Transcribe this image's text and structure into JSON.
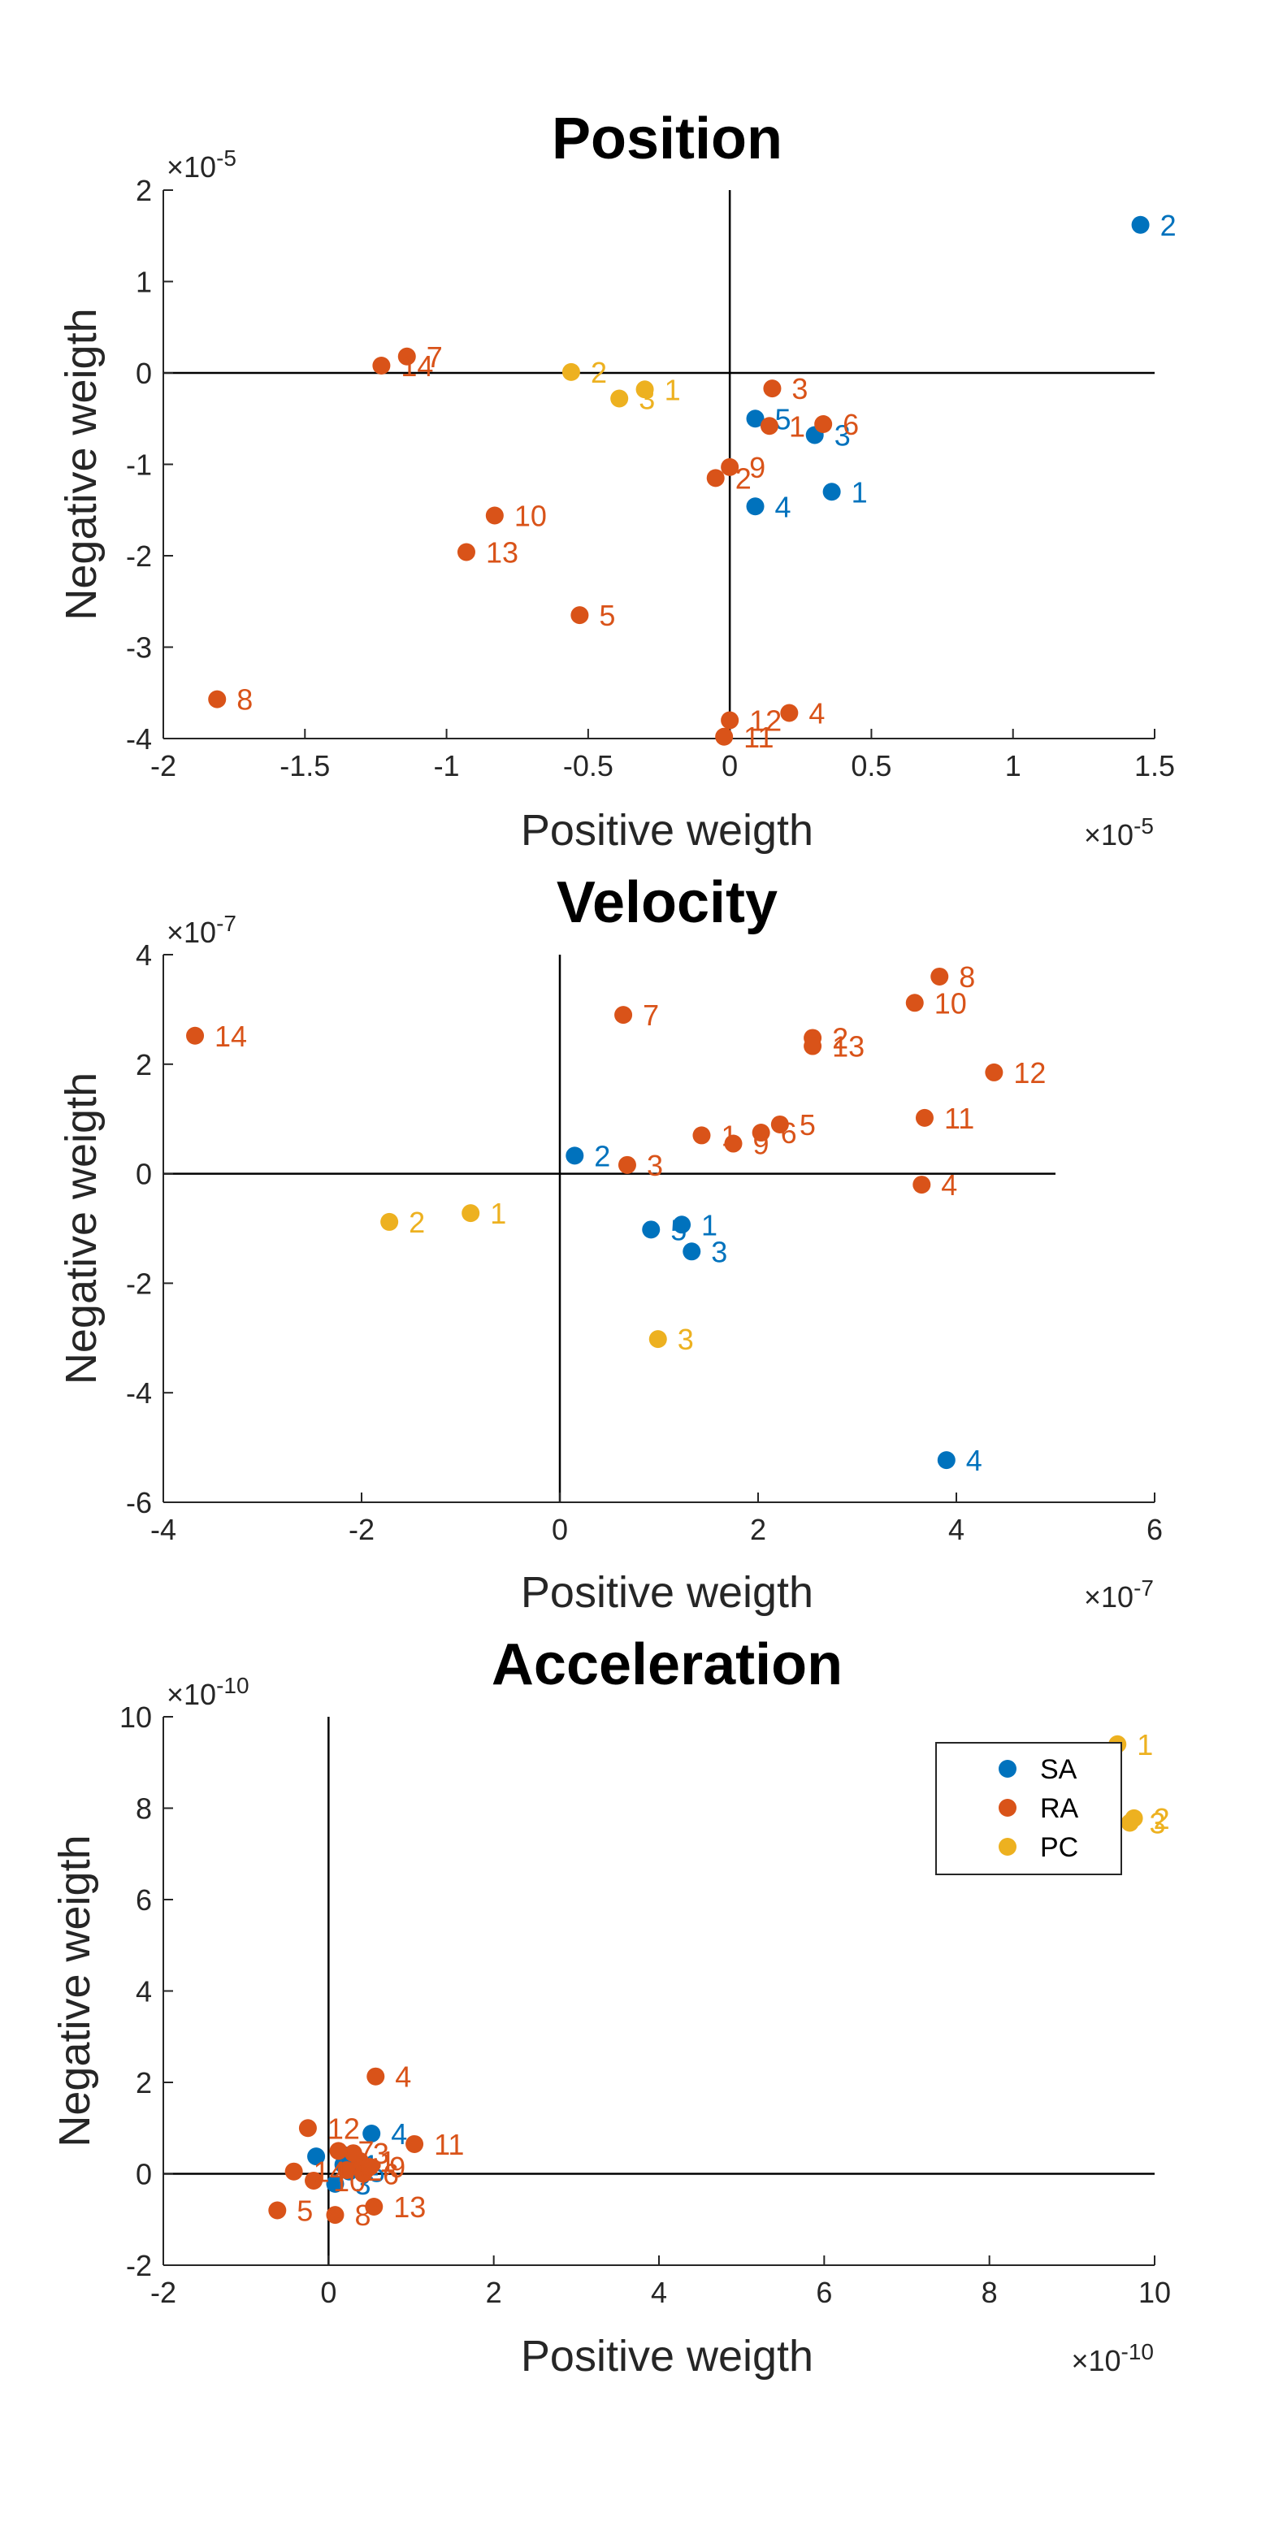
{
  "colors": {
    "SA": "#0072BD",
    "RA": "#D95319",
    "PC": "#EDB120"
  },
  "legend": {
    "placement": "top-right",
    "entries": [
      "SA",
      "RA",
      "PC"
    ]
  },
  "chart_data": [
    {
      "type": "scatter",
      "title": "Position",
      "xlabel": "Positive weigth",
      "ylabel": "Negative weigth",
      "x_exponent_label": "×10-5",
      "y_exponent_label": "×10-5",
      "scale": 1e-05,
      "xlim": [
        -2,
        1.5
      ],
      "ylim": [
        -4,
        2
      ],
      "xticks": [
        -2,
        -1.5,
        -1,
        -0.5,
        0,
        0.5,
        1,
        1.5
      ],
      "xtick_labels": [
        "-2",
        "-1.5",
        "-1",
        "-0.5",
        "0",
        "0.5",
        "1",
        "1.5"
      ],
      "yticks": [
        -4,
        -3,
        -2,
        -1,
        0,
        1,
        2
      ],
      "ytick_labels": [
        "-4",
        "-3",
        "-2",
        "-1",
        "0",
        "1",
        "2"
      ],
      "series": [
        {
          "name": "SA",
          "points": [
            {
              "label": "1",
              "x": 0.36,
              "y": -1.3
            },
            {
              "label": "2",
              "x": 1.45,
              "y": 1.62
            },
            {
              "label": "3",
              "x": 0.3,
              "y": -0.68
            },
            {
              "label": "4",
              "x": 0.09,
              "y": -1.46
            },
            {
              "label": "5",
              "x": 0.09,
              "y": -0.5
            }
          ]
        },
        {
          "name": "RA",
          "points": [
            {
              "label": "1",
              "x": 0.14,
              "y": -0.58
            },
            {
              "label": "2",
              "x": -0.05,
              "y": -1.15
            },
            {
              "label": "3",
              "x": 0.15,
              "y": -0.17
            },
            {
              "label": "4",
              "x": 0.21,
              "y": -3.72
            },
            {
              "label": "5",
              "x": -0.53,
              "y": -2.65
            },
            {
              "label": "6",
              "x": 0.33,
              "y": -0.56
            },
            {
              "label": "7",
              "x": -1.14,
              "y": 0.18
            },
            {
              "label": "8",
              "x": -1.81,
              "y": -3.57
            },
            {
              "label": "9",
              "x": 0.0,
              "y": -1.03
            },
            {
              "label": "10",
              "x": -0.83,
              "y": -1.56
            },
            {
              "label": "11",
              "x": -0.02,
              "y": -3.98
            },
            {
              "label": "12",
              "x": 0.0,
              "y": -3.8
            },
            {
              "label": "13",
              "x": -0.93,
              "y": -1.96
            },
            {
              "label": "14",
              "x": -1.23,
              "y": 0.08
            }
          ]
        },
        {
          "name": "PC",
          "points": [
            {
              "label": "1",
              "x": -0.3,
              "y": -0.18
            },
            {
              "label": "2",
              "x": -0.56,
              "y": 0.01
            },
            {
              "label": "3",
              "x": -0.39,
              "y": -0.28
            }
          ]
        }
      ]
    },
    {
      "type": "scatter",
      "title": "Velocity",
      "xlabel": "Positive weigth",
      "ylabel": "Negative weigth",
      "x_exponent_label": "×10-7",
      "y_exponent_label": "×10-7",
      "scale": 1e-07,
      "xlim": [
        -4,
        6
      ],
      "ylim": [
        -6,
        4
      ],
      "xticks": [
        -4,
        -2,
        0,
        2,
        4,
        6
      ],
      "xtick_labels": [
        "-4",
        "-2",
        "0",
        "2",
        "4",
        "6"
      ],
      "yticks": [
        -6,
        -4,
        -2,
        0,
        2,
        4
      ],
      "ytick_labels": [
        "-6",
        "-4",
        "-2",
        "0",
        "2",
        "4"
      ],
      "axis_line_x_end": 5,
      "series": [
        {
          "name": "SA",
          "points": [
            {
              "label": "1",
              "x": 1.23,
              "y": -0.93
            },
            {
              "label": "2",
              "x": 0.15,
              "y": 0.33
            },
            {
              "label": "3",
              "x": 1.33,
              "y": -1.42
            },
            {
              "label": "4",
              "x": 3.9,
              "y": -5.23
            },
            {
              "label": "5",
              "x": 0.92,
              "y": -1.02
            }
          ]
        },
        {
          "name": "RA",
          "points": [
            {
              "label": "1",
              "x": 1.43,
              "y": 0.7
            },
            {
              "label": "2",
              "x": 2.55,
              "y": 2.48
            },
            {
              "label": "3",
              "x": 0.68,
              "y": 0.16
            },
            {
              "label": "4",
              "x": 3.65,
              "y": -0.2
            },
            {
              "label": "5",
              "x": 2.22,
              "y": 0.9
            },
            {
              "label": "6",
              "x": 2.03,
              "y": 0.75
            },
            {
              "label": "7",
              "x": 0.64,
              "y": 2.9
            },
            {
              "label": "8",
              "x": 3.83,
              "y": 3.6
            },
            {
              "label": "9",
              "x": 1.75,
              "y": 0.55
            },
            {
              "label": "10",
              "x": 3.58,
              "y": 3.12
            },
            {
              "label": "11",
              "x": 3.68,
              "y": 1.02
            },
            {
              "label": "12",
              "x": 4.38,
              "y": 1.85
            },
            {
              "label": "13",
              "x": 2.55,
              "y": 2.33
            },
            {
              "label": "14",
              "x": -3.68,
              "y": 2.52
            }
          ]
        },
        {
          "name": "PC",
          "points": [
            {
              "label": "1",
              "x": -0.9,
              "y": -0.72
            },
            {
              "label": "2",
              "x": -1.72,
              "y": -0.88
            },
            {
              "label": "3",
              "x": 0.99,
              "y": -3.02
            }
          ]
        }
      ]
    },
    {
      "type": "scatter",
      "title": "Acceleration",
      "xlabel": "Positive weigth",
      "ylabel": "Negative weigth",
      "x_exponent_label": "×10-10",
      "y_exponent_label": "×10-10",
      "scale": 1e-10,
      "xlim": [
        -2,
        10
      ],
      "ylim": [
        -2,
        10
      ],
      "xticks": [
        -2,
        0,
        2,
        4,
        6,
        8,
        10
      ],
      "xtick_labels": [
        "-2",
        "0",
        "2",
        "4",
        "6",
        "8",
        "10"
      ],
      "yticks": [
        -2,
        0,
        2,
        4,
        6,
        8,
        10
      ],
      "ytick_labels": [
        "-2",
        "0",
        "2",
        "4",
        "6",
        "8",
        "10"
      ],
      "legend": true,
      "series": [
        {
          "name": "SA",
          "points": [
            {
              "label": "1",
              "x": 0.18,
              "y": 0.2
            },
            {
              "label": "2",
              "x": -0.15,
              "y": 0.38
            },
            {
              "label": "3",
              "x": 0.08,
              "y": -0.22
            },
            {
              "label": "4",
              "x": 0.52,
              "y": 0.88
            },
            {
              "label": "5",
              "x": 0.25,
              "y": 0.05
            }
          ]
        },
        {
          "name": "RA",
          "points": [
            {
              "label": "1",
              "x": 0.38,
              "y": 0.28
            },
            {
              "label": "2",
              "x": 0.22,
              "y": 0.08
            },
            {
              "label": "3",
              "x": 0.3,
              "y": 0.45
            },
            {
              "label": "4",
              "x": 0.57,
              "y": 2.13
            },
            {
              "label": "5",
              "x": -0.62,
              "y": -0.8
            },
            {
              "label": "6",
              "x": 0.42,
              "y": 0.0
            },
            {
              "label": "7",
              "x": 0.12,
              "y": 0.5
            },
            {
              "label": "8",
              "x": 0.08,
              "y": -0.9
            },
            {
              "label": "9",
              "x": 0.5,
              "y": 0.15
            },
            {
              "label": "10",
              "x": -0.18,
              "y": -0.15
            },
            {
              "label": "11",
              "x": 1.04,
              "y": 0.65
            },
            {
              "label": "12",
              "x": -0.25,
              "y": 1.0
            },
            {
              "label": "13",
              "x": 0.55,
              "y": -0.72
            },
            {
              "label": "14",
              "x": -0.42,
              "y": 0.05
            }
          ]
        },
        {
          "name": "PC",
          "points": [
            {
              "label": "1",
              "x": 9.55,
              "y": 9.4
            },
            {
              "label": "2",
              "x": 9.75,
              "y": 7.78
            },
            {
              "label": "3",
              "x": 9.7,
              "y": 7.68
            }
          ]
        }
      ]
    }
  ]
}
